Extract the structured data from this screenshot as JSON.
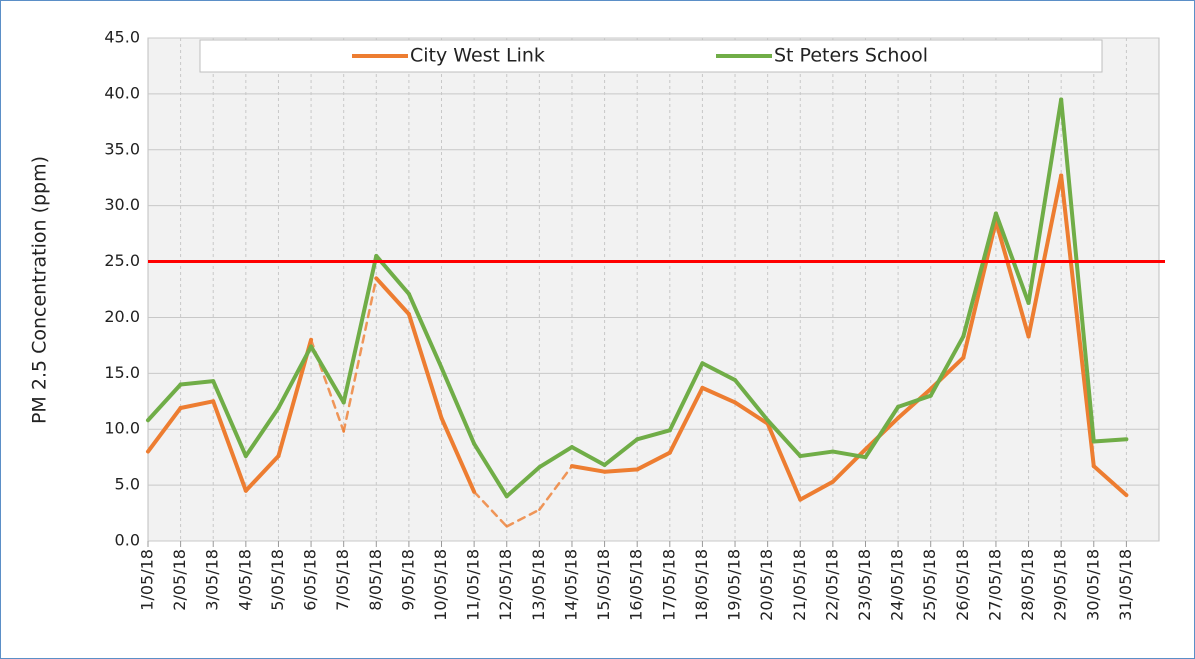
{
  "chart_data": {
    "type": "line",
    "y_label": "PM 2.5 Concentration (ppm)",
    "categories": [
      "1/05/18",
      "2/05/18",
      "3/05/18",
      "4/05/18",
      "5/05/18",
      "6/05/18",
      "7/05/18",
      "8/05/18",
      "9/05/18",
      "10/05/18",
      "11/05/18",
      "12/05/18",
      "13/05/18",
      "14/05/18",
      "15/05/18",
      "16/05/18",
      "17/05/18",
      "18/05/18",
      "19/05/18",
      "20/05/18",
      "21/05/18",
      "22/05/18",
      "23/05/18",
      "24/05/18",
      "25/05/18",
      "26/05/18",
      "27/05/18",
      "28/05/18",
      "29/05/18",
      "30/05/18",
      "31/05/18"
    ],
    "series": [
      {
        "name": "City West Link",
        "color": "#ed7d31",
        "values": [
          8.0,
          11.9,
          12.5,
          4.5,
          7.6,
          18.0,
          9.8,
          23.5,
          20.3,
          11.0,
          4.4,
          1.3,
          2.8,
          6.7,
          6.2,
          6.4,
          7.9,
          13.7,
          12.4,
          10.5,
          3.7,
          5.3,
          8.2,
          11.0,
          13.6,
          16.4,
          28.6,
          18.3,
          32.7,
          6.7,
          4.1
        ],
        "estimated": [
          false,
          false,
          false,
          false,
          false,
          false,
          true,
          false,
          false,
          false,
          false,
          true,
          true,
          false,
          false,
          false,
          false,
          false,
          false,
          false,
          false,
          false,
          false,
          false,
          false,
          false,
          false,
          false,
          false,
          false,
          false
        ]
      },
      {
        "name": "St Peters School",
        "color": "#70ad47",
        "values": [
          10.8,
          14.0,
          14.3,
          7.6,
          11.9,
          17.4,
          12.4,
          25.5,
          22.1,
          15.5,
          8.7,
          4.0,
          6.6,
          8.4,
          6.8,
          9.1,
          9.9,
          15.9,
          14.4,
          10.8,
          7.6,
          8.0,
          7.5,
          12.0,
          13.0,
          18.3,
          29.3,
          21.3,
          39.5,
          8.9,
          9.1
        ]
      }
    ],
    "reference_line": {
      "value": 25,
      "color": "#ff0000"
    },
    "ylim": [
      0,
      45
    ],
    "yticks": [
      {
        "value": 0,
        "label": "0.0"
      },
      {
        "value": 5,
        "label": "5.0"
      },
      {
        "value": 10,
        "label": "10.0"
      },
      {
        "value": 15,
        "label": "15.0"
      },
      {
        "value": 20,
        "label": "20.0"
      },
      {
        "value": 25,
        "label": "25.0"
      },
      {
        "value": 30,
        "label": "30.0"
      },
      {
        "value": 35,
        "label": "35.0"
      },
      {
        "value": 40,
        "label": "40.0"
      },
      {
        "value": 45,
        "label": "45.0"
      }
    ],
    "grid": true,
    "legend": "top"
  }
}
